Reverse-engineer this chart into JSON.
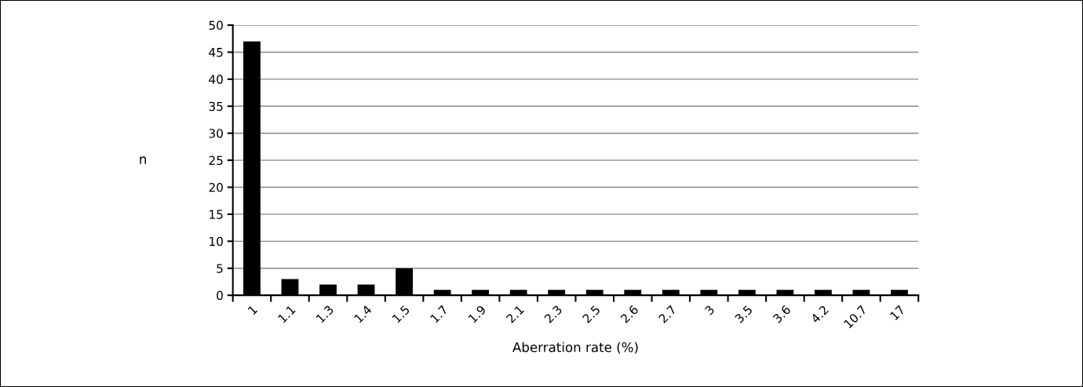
{
  "chart_data": {
    "type": "bar",
    "xlabel": "Aberration rate (%)",
    "ylabel": "n",
    "categories": [
      "1",
      "1.1",
      "1.3",
      "1.4",
      "1.5",
      "1.7",
      "1.9",
      "2.1",
      "2.3",
      "2.5",
      "2.6",
      "2.7",
      "3",
      "3.5",
      "3.6",
      "4.2",
      "10.7",
      "17"
    ],
    "values": [
      47,
      3,
      2,
      2,
      5,
      1,
      1,
      1,
      1,
      1,
      1,
      1,
      1,
      1,
      1,
      1,
      1,
      1
    ],
    "color": "#000000",
    "ylim": [
      0,
      50
    ],
    "yticks": [
      0,
      5,
      10,
      15,
      20,
      25,
      30,
      35,
      40,
      45,
      50
    ],
    "grid": "y",
    "legend": false
  }
}
